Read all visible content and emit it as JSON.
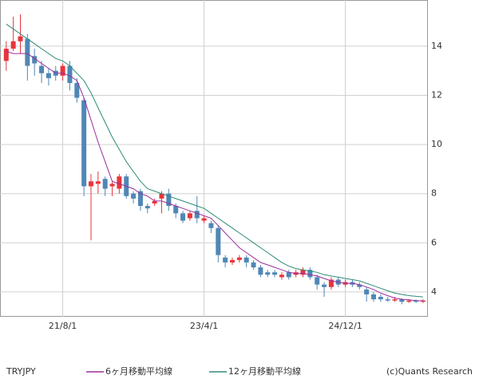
{
  "chart_data": {
    "type": "candlestick",
    "symbol": "TRYJPY",
    "credit": "(c)Quants Research",
    "categories": [
      null,
      null,
      null,
      null,
      null,
      null,
      null,
      null,
      "21/8/1",
      null,
      null,
      null,
      null,
      null,
      null,
      null,
      null,
      null,
      null,
      null,
      null,
      null,
      null,
      null,
      null,
      null,
      null,
      null,
      "23/4/1",
      null,
      null,
      null,
      null,
      null,
      null,
      null,
      null,
      null,
      null,
      null,
      null,
      null,
      null,
      null,
      null,
      null,
      null,
      null,
      "24/12/1",
      null,
      null,
      null,
      null,
      null,
      null,
      null,
      null,
      null,
      null,
      null
    ],
    "open": [
      13.4,
      13.9,
      14.2,
      14.3,
      13.6,
      13.2,
      12.9,
      13.0,
      12.8,
      13.2,
      12.5,
      11.8,
      8.3,
      8.4,
      8.6,
      8.3,
      8.2,
      8.7,
      8.0,
      8.1,
      7.5,
      7.6,
      7.8,
      8.0,
      7.5,
      7.2,
      7.0,
      7.3,
      6.9,
      6.8,
      6.6,
      5.4,
      5.2,
      5.3,
      5.4,
      5.2,
      5.0,
      4.8,
      4.8,
      4.6,
      4.8,
      4.7,
      4.7,
      4.9,
      4.6,
      4.3,
      4.2,
      4.5,
      4.3,
      4.4,
      4.3,
      4.1,
      3.9,
      3.8,
      3.7,
      3.65,
      3.7,
      3.6,
      3.65,
      3.6
    ],
    "high": [
      14.2,
      15.2,
      15.3,
      14.5,
      13.9,
      13.4,
      13.1,
      13.2,
      13.3,
      13.4,
      12.7,
      11.9,
      8.8,
      8.9,
      8.7,
      8.5,
      8.8,
      8.8,
      8.1,
      8.2,
      7.6,
      7.8,
      8.1,
      8.2,
      7.6,
      7.3,
      7.3,
      7.9,
      7.1,
      6.9,
      6.7,
      5.5,
      5.4,
      5.5,
      5.5,
      5.3,
      5.1,
      4.9,
      4.9,
      4.8,
      4.9,
      4.9,
      5.0,
      5.0,
      4.7,
      4.4,
      4.6,
      4.6,
      4.5,
      4.5,
      4.4,
      4.2,
      4.0,
      3.9,
      3.8,
      3.8,
      3.75,
      3.7,
      3.7,
      3.7
    ],
    "low": [
      13.0,
      13.8,
      13.7,
      12.6,
      12.8,
      12.5,
      12.4,
      12.6,
      12.6,
      12.2,
      11.7,
      7.9,
      6.1,
      8.0,
      7.9,
      7.9,
      8.0,
      7.8,
      7.6,
      7.3,
      7.2,
      7.5,
      7.2,
      7.3,
      7.0,
      6.8,
      6.9,
      6.8,
      6.8,
      6.4,
      5.2,
      5.0,
      5.1,
      5.2,
      5.0,
      4.9,
      4.6,
      4.6,
      4.6,
      4.5,
      4.5,
      4.6,
      4.6,
      4.5,
      4.1,
      3.8,
      4.1,
      4.2,
      4.2,
      4.2,
      4.1,
      3.6,
      3.6,
      3.6,
      3.6,
      3.6,
      3.5,
      3.55,
      3.55,
      3.55
    ],
    "close": [
      13.9,
      14.2,
      14.4,
      13.2,
      13.3,
      12.9,
      12.7,
      12.8,
      13.2,
      12.5,
      11.9,
      8.3,
      8.5,
      8.5,
      8.2,
      8.4,
      8.7,
      7.9,
      7.8,
      7.5,
      7.4,
      7.7,
      8.0,
      7.5,
      7.2,
      6.9,
      7.2,
      7.0,
      7.0,
      6.6,
      5.5,
      5.2,
      5.3,
      5.4,
      5.2,
      5.0,
      4.7,
      4.7,
      4.7,
      4.7,
      4.6,
      4.8,
      4.9,
      4.6,
      4.3,
      4.2,
      4.5,
      4.3,
      4.4,
      4.3,
      4.2,
      3.9,
      3.7,
      3.7,
      3.65,
      3.7,
      3.6,
      3.65,
      3.6,
      3.65
    ],
    "up_color": "#e8343c",
    "down_color": "#4f87b5",
    "series": [
      {
        "name": "6ヶ月移動平均線",
        "color": "#9a2e9e",
        "values": [
          13.8,
          13.7,
          13.7,
          13.7,
          13.5,
          13.3,
          13.1,
          12.9,
          12.9,
          12.8,
          12.6,
          11.9,
          11.0,
          10.1,
          9.3,
          8.5,
          8.4,
          8.3,
          8.2,
          8.0,
          7.9,
          7.7,
          7.7,
          7.6,
          7.5,
          7.4,
          7.3,
          7.2,
          7.1,
          7.0,
          6.7,
          6.4,
          6.1,
          5.8,
          5.6,
          5.4,
          5.2,
          5.1,
          5.0,
          4.9,
          4.8,
          4.75,
          4.75,
          4.7,
          4.65,
          4.55,
          4.45,
          4.4,
          4.35,
          4.35,
          4.3,
          4.2,
          4.1,
          3.95,
          3.85,
          3.75,
          3.7,
          3.68,
          3.65,
          3.64
        ]
      },
      {
        "name": "12ヶ月移動平均線",
        "color": "#2e8b78",
        "values": [
          14.9,
          14.7,
          14.5,
          14.3,
          14.1,
          13.9,
          13.7,
          13.5,
          13.4,
          13.2,
          12.9,
          12.6,
          12.1,
          11.5,
          10.9,
          10.3,
          9.8,
          9.3,
          8.9,
          8.5,
          8.2,
          8.1,
          8.0,
          7.9,
          7.8,
          7.7,
          7.6,
          7.5,
          7.4,
          7.2,
          7.0,
          6.8,
          6.6,
          6.4,
          6.2,
          6.0,
          5.8,
          5.6,
          5.4,
          5.2,
          5.05,
          4.95,
          4.9,
          4.85,
          4.8,
          4.7,
          4.65,
          4.6,
          4.55,
          4.5,
          4.45,
          4.35,
          4.25,
          4.15,
          4.05,
          3.95,
          3.9,
          3.85,
          3.82,
          3.8
        ]
      }
    ],
    "ylim": [
      2.99,
      15.88
    ],
    "yticks": [
      4,
      6,
      8,
      10,
      12,
      14
    ],
    "grid": true
  }
}
